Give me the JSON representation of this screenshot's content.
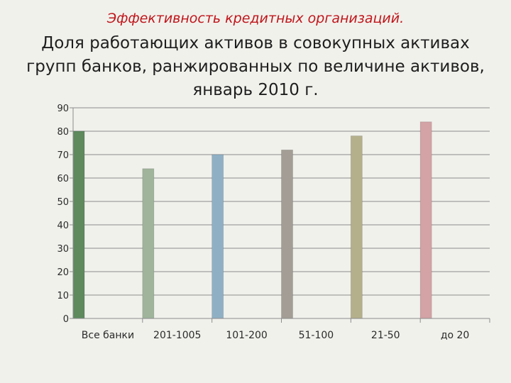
{
  "slide": {
    "subtitle": "Эффективность кредитных организаций.",
    "title_lines": [
      "Доля работающих активов в совокупных активах",
      "групп банков, ранжированных по величине активов,",
      "январь 2010 г."
    ]
  },
  "chart_data": {
    "type": "bar",
    "title": "Доля работающих активов в совокупных активах групп банков, ранжированных по величине активов, январь 2010 г.",
    "categories": [
      "Все банки",
      "201-1005",
      "101-200",
      "51-100",
      "21-50",
      "до 20"
    ],
    "values": [
      80,
      64,
      70,
      72,
      78,
      84
    ],
    "colors": [
      "#5e8a5e",
      "#9fb49b",
      "#8fb0c4",
      "#a39d95",
      "#b4b08c",
      "#d3a3a6"
    ],
    "ylim": [
      0,
      90
    ],
    "yticks": [
      0,
      10,
      20,
      30,
      40,
      50,
      60,
      70,
      80,
      90
    ],
    "grid": true,
    "legend": "none"
  }
}
